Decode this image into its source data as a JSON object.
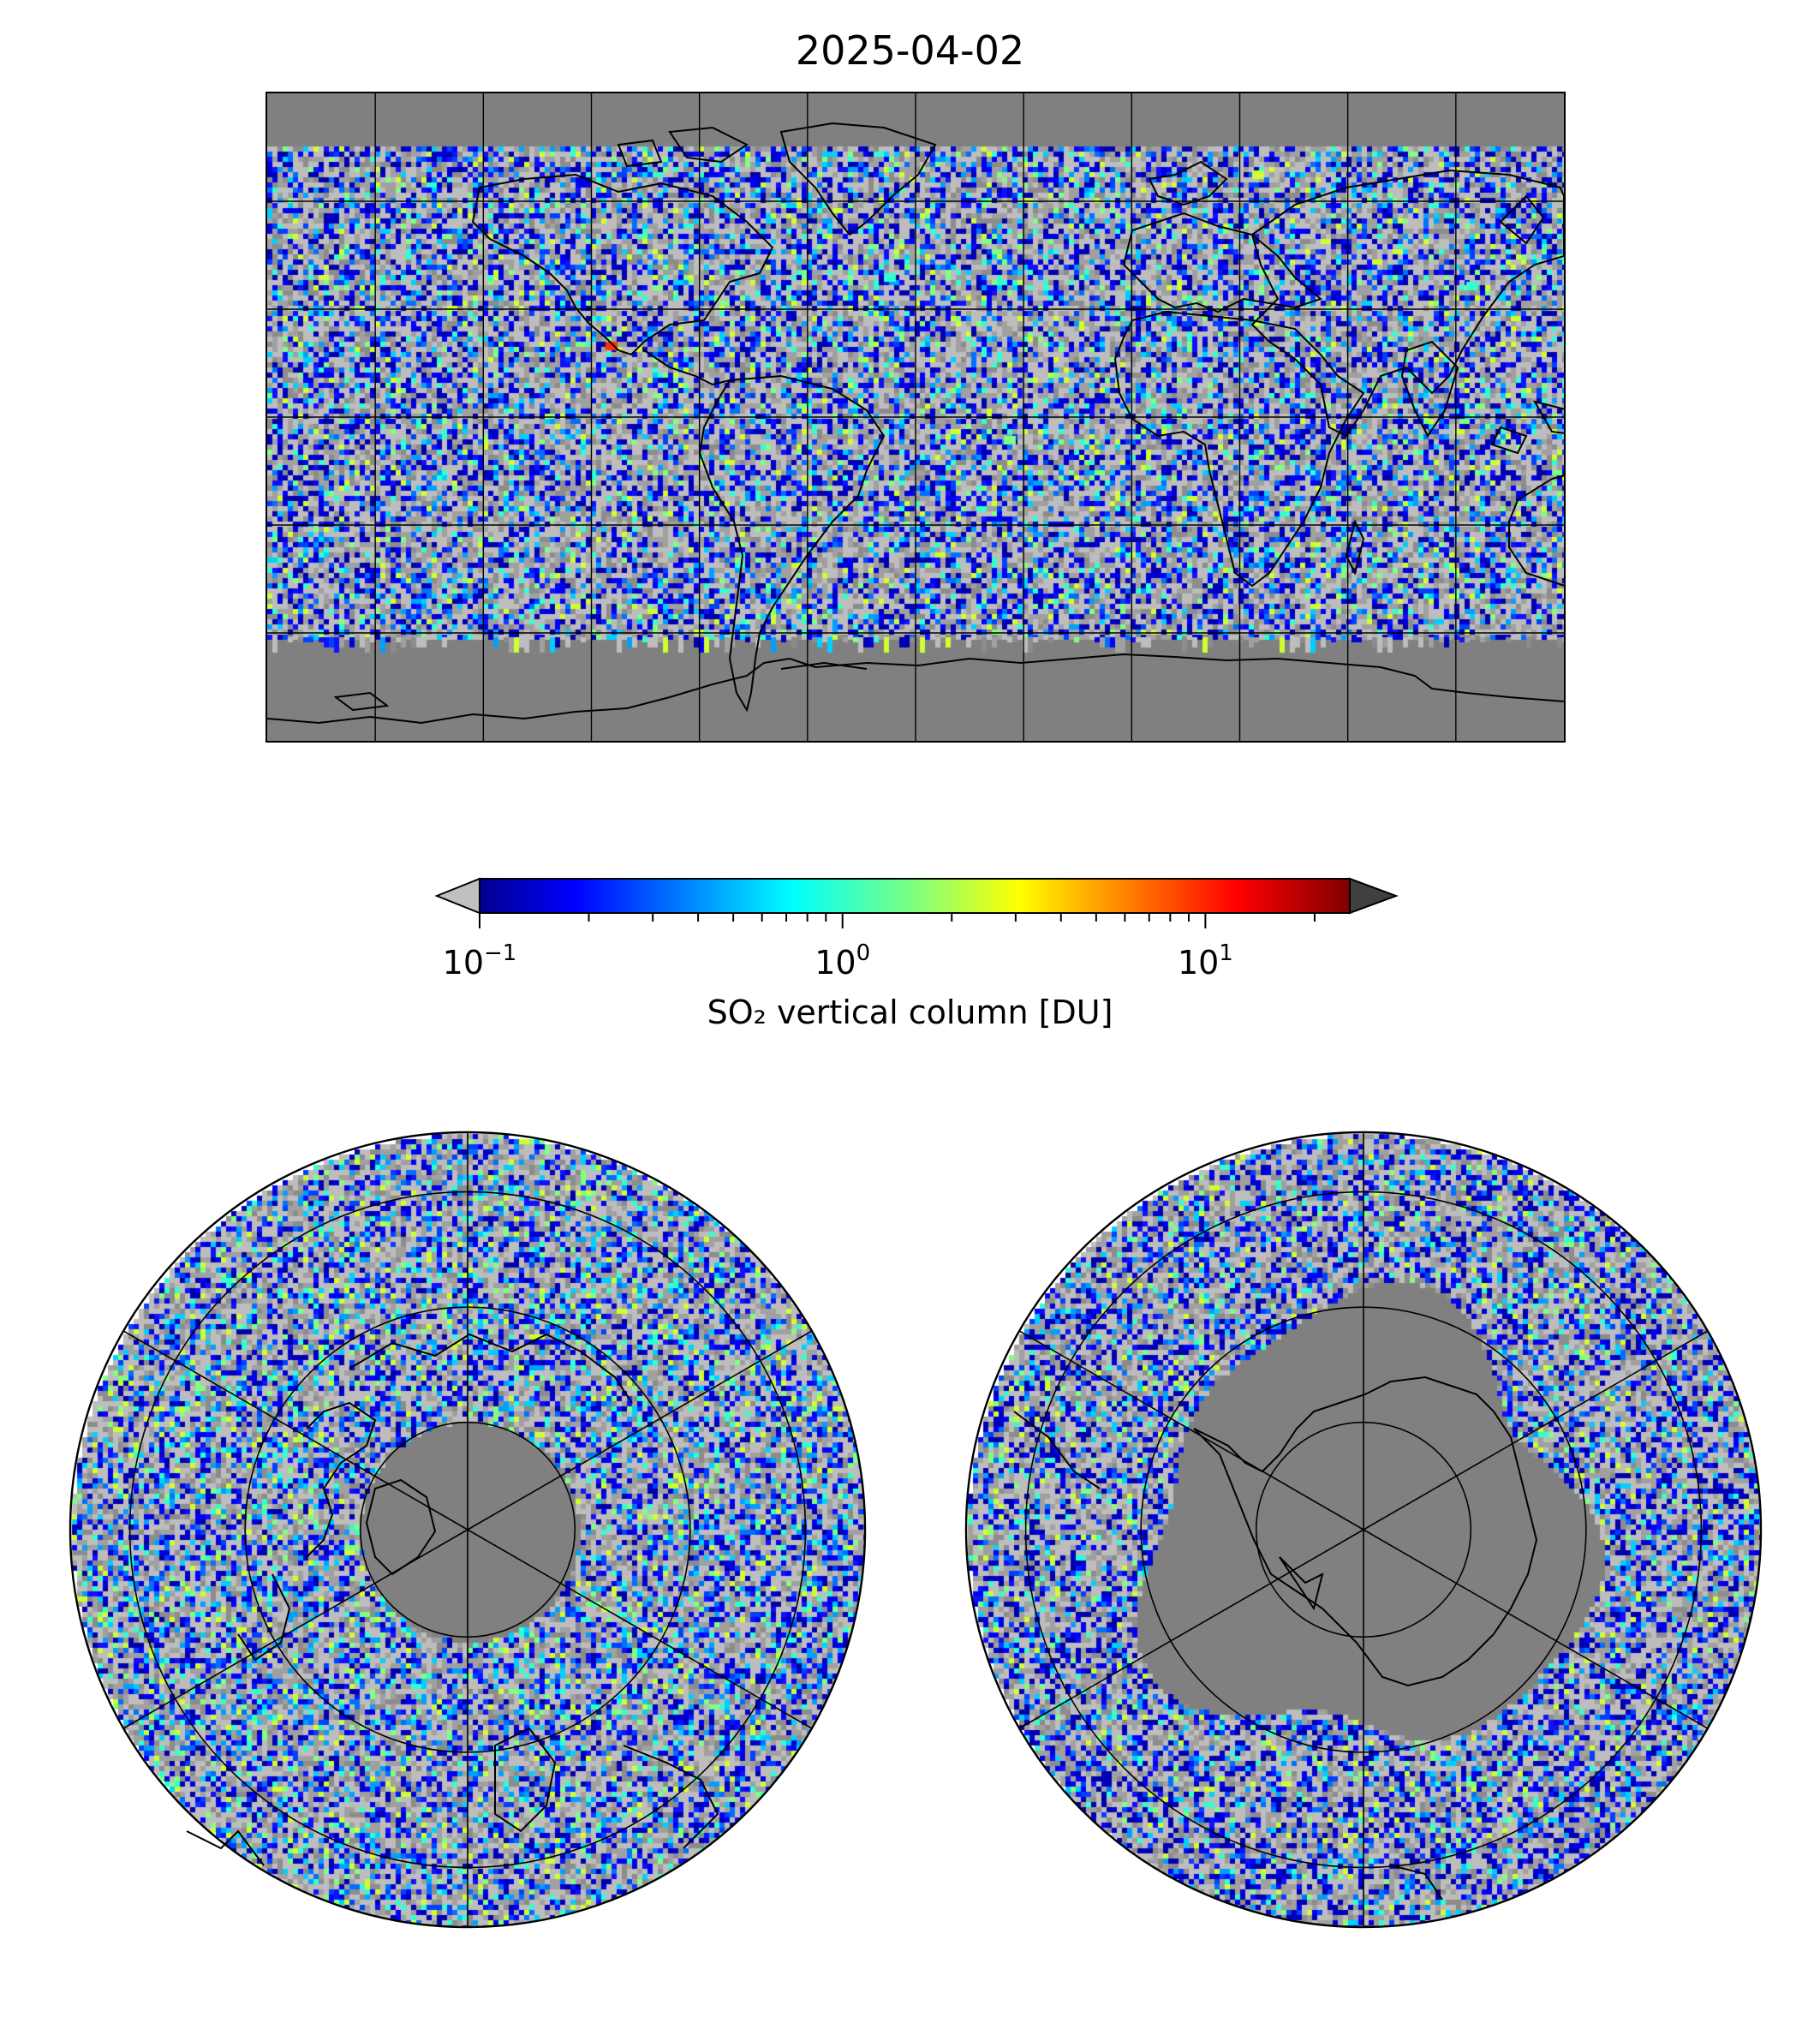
{
  "title": "2025-04-02",
  "colorbar": {
    "label": "SO₂ vertical column [DU]",
    "scale": "log",
    "colormap": "jet",
    "range": [
      0.1,
      25
    ],
    "extend": "both",
    "under_color": "#c0c0c0",
    "over_color": "#404040",
    "ticks": [
      {
        "base": "10",
        "exp": "−1",
        "value": 0.1
      },
      {
        "base": "10",
        "exp": "0",
        "value": 1
      },
      {
        "base": "10",
        "exp": "1",
        "value": 10
      }
    ]
  },
  "maps": {
    "global": {
      "projection": "equirectangular",
      "gridlines": "every 30°",
      "no_data_color": "#808080"
    },
    "north_polar": {
      "projection": "north polar stereographic",
      "hemisphere": "northern"
    },
    "south_polar": {
      "projection": "south polar stereographic",
      "hemisphere": "southern"
    }
  }
}
